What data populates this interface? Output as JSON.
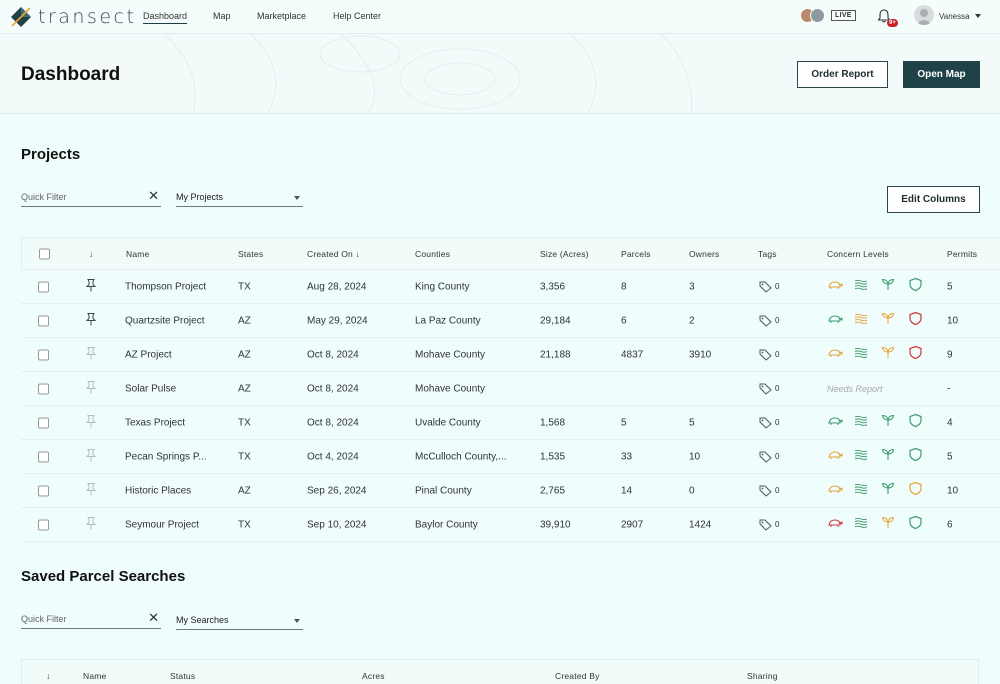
{
  "app": {
    "brand": "transect"
  },
  "nav": [
    {
      "label": "Dashboard",
      "active": true
    },
    {
      "label": "Map",
      "active": false
    },
    {
      "label": "Marketplace",
      "active": false
    },
    {
      "label": "Help Center",
      "active": false
    }
  ],
  "topbar": {
    "live": "LIVE",
    "notifications": "9+",
    "user": "Vanessa"
  },
  "header": {
    "title": "Dashboard",
    "order_report": "Order Report",
    "open_map": "Open Map"
  },
  "projects": {
    "title": "Projects",
    "quick_filter_placeholder": "Quick Filter",
    "filter_select": "My Projects",
    "edit_columns": "Edit Columns",
    "columns": [
      "Name",
      "States",
      "Created On",
      "Counties",
      "Size (Acres)",
      "Parcels",
      "Owners",
      "Tags",
      "Concern Levels",
      "Permits"
    ],
    "rows": [
      {
        "name": "Thompson Project",
        "state": "TX",
        "created": "Aug 28, 2024",
        "county": "King County",
        "size": "3,356",
        "parcels": "8",
        "owners": "3",
        "tags": "0",
        "pinned": true,
        "concern": [
          "orange",
          "green",
          "green",
          "green"
        ],
        "permits": "5"
      },
      {
        "name": "Quartzsite Project",
        "state": "AZ",
        "created": "May 29, 2024",
        "county": "La Paz County",
        "size": "29,184",
        "parcels": "6",
        "owners": "2",
        "tags": "0",
        "pinned": true,
        "concern": [
          "green",
          "orange",
          "orange",
          "red"
        ],
        "permits": "10"
      },
      {
        "name": "AZ Project",
        "state": "AZ",
        "created": "Oct 8, 2024",
        "county": "Mohave County",
        "size": "21,188",
        "parcels": "4837",
        "owners": "3910",
        "tags": "0",
        "pinned": false,
        "concern": [
          "orange",
          "green",
          "orange",
          "red"
        ],
        "permits": "9"
      },
      {
        "name": "Solar Pulse",
        "state": "AZ",
        "created": "Oct 8, 2024",
        "county": "Mohave County",
        "size": "",
        "parcels": "",
        "owners": "",
        "tags": "0",
        "pinned": false,
        "concern": [],
        "needs_report": "Needs Report",
        "permits": "-"
      },
      {
        "name": "Texas Project",
        "state": "TX",
        "created": "Oct 8, 2024",
        "county": "Uvalde County",
        "size": "1,568",
        "parcels": "5",
        "owners": "5",
        "tags": "0",
        "pinned": false,
        "concern": [
          "green",
          "green",
          "green",
          "green"
        ],
        "permits": "4"
      },
      {
        "name": "Pecan Springs P...",
        "state": "TX",
        "created": "Oct 4, 2024",
        "county": "McCulloch County,...",
        "size": "1,535",
        "parcels": "33",
        "owners": "10",
        "tags": "0",
        "pinned": false,
        "concern": [
          "orange",
          "green",
          "green",
          "green"
        ],
        "permits": "5"
      },
      {
        "name": "Historic Places",
        "state": "AZ",
        "created": "Sep 26, 2024",
        "county": "Pinal County",
        "size": "2,765",
        "parcels": "14",
        "owners": "0",
        "tags": "0",
        "pinned": false,
        "concern": [
          "orange",
          "green",
          "green",
          "orange"
        ],
        "permits": "10"
      },
      {
        "name": "Seymour Project",
        "state": "TX",
        "created": "Sep 10, 2024",
        "county": "Baylor County",
        "size": "39,910",
        "parcels": "2907",
        "owners": "1424",
        "tags": "0",
        "pinned": false,
        "concern": [
          "red",
          "green",
          "orange",
          "green"
        ],
        "permits": "6"
      }
    ]
  },
  "saved": {
    "title": "Saved Parcel Searches",
    "quick_filter_placeholder": "Quick Filter",
    "filter_select": "My Searches",
    "columns": [
      "Name",
      "Status",
      "Acres",
      "Created By",
      "Sharing"
    ]
  },
  "colors": {
    "orange": "#e8a33a",
    "green": "#3d9a6a",
    "red": "#d2323a",
    "accent": "#1f4148"
  }
}
